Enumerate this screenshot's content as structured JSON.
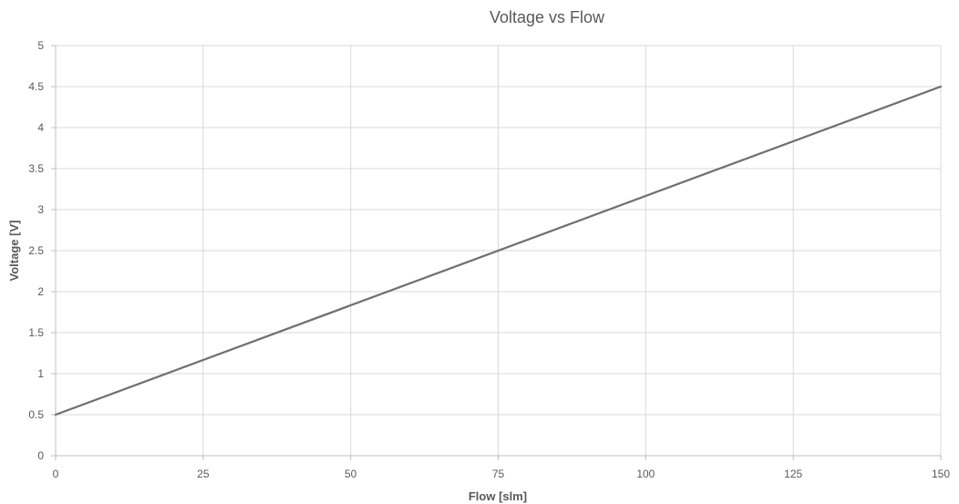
{
  "chart_data": {
    "type": "line",
    "title": "Voltage vs Flow",
    "xlabel": "Flow [slm]",
    "ylabel": "Voltage [V]",
    "xlim": [
      0,
      150
    ],
    "ylim": [
      0,
      5
    ],
    "x_ticks": [
      "0",
      "25",
      "50",
      "75",
      "100",
      "125",
      "150"
    ],
    "y_ticks": [
      "0",
      "0.5",
      "1",
      "1.5",
      "2",
      "2.5",
      "3",
      "3.5",
      "4",
      "4.5",
      "5"
    ],
    "grid": true,
    "legend": "none",
    "series": [
      {
        "x": [
          0,
          150
        ],
        "y": [
          0.5,
          4.5
        ],
        "color": "#707070"
      }
    ]
  }
}
